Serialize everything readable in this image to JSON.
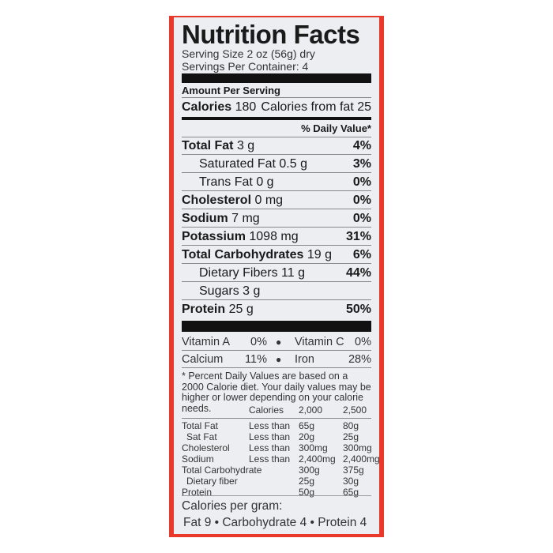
{
  "title": "Nutrition Facts",
  "serving_size": "Serving Size 2 oz (56g) dry",
  "servings_per_container": "Servings Per Container: 4",
  "amount_per_serving": "Amount Per Serving",
  "calories": {
    "label": "Calories",
    "value": "180",
    "from_fat": "Calories from fat 25"
  },
  "daily_value_header": "% Daily Value*",
  "nutrients": [
    {
      "name": "Total Fat",
      "amount": "3 g",
      "pct": "4%",
      "bold": true
    },
    {
      "name": "Saturated Fat",
      "amount": "0.5 g",
      "pct": "3%",
      "bold": false
    },
    {
      "name": "Trans Fat",
      "amount": "0 g",
      "pct": "0%",
      "bold": false
    },
    {
      "name": "Cholesterol",
      "amount": "0 mg",
      "pct": "0%",
      "bold": true
    },
    {
      "name": "Sodium",
      "amount": "7 mg",
      "pct": "0%",
      "bold": true
    },
    {
      "name": "Potassium",
      "amount": "1098 mg",
      "pct": "31%",
      "bold": true
    },
    {
      "name": "Total Carbohydrates",
      "amount": "19 g",
      "pct": "6%",
      "bold": true
    },
    {
      "name": "Dietary Fibers",
      "amount": "11 g",
      "pct": "44%",
      "bold": false
    },
    {
      "name": "Sugars",
      "amount": "3 g",
      "pct": "",
      "bold": false
    },
    {
      "name": "Protein",
      "amount": "25 g",
      "pct": "50%",
      "bold": true
    }
  ],
  "vitamins": [
    [
      {
        "name": "Vitamin A",
        "pct": "0%"
      },
      {
        "name": "Vitamin C",
        "pct": "0%"
      }
    ],
    [
      {
        "name": "Calcium",
        "pct": "11%"
      },
      {
        "name": "Iron",
        "pct": "28%"
      }
    ]
  ],
  "footnote": "* Percent Daily Values are based on a 2000 Calorie diet. Your daily values may be higher or lower depending on your calorie needs.",
  "dv_table": {
    "header": [
      "",
      "Calories",
      "2,000",
      "2,500"
    ],
    "rows": [
      [
        "Total Fat",
        "Less than",
        "65g",
        "80g"
      ],
      [
        " Sat Fat",
        "Less than",
        "20g",
        "25g"
      ],
      [
        "Cholesterol",
        "Less than",
        "300mg",
        "300mg"
      ],
      [
        "Sodium",
        "Less than",
        "2,400mg",
        "2,400mg"
      ],
      [
        "Total Carbohydrate",
        "",
        "300g",
        "375g"
      ],
      [
        " Dietary fiber",
        "",
        "25g",
        "30g"
      ],
      [
        "Protein",
        "",
        "50g",
        "65g"
      ]
    ]
  },
  "calories_per_gram": {
    "label": "Calories per gram:",
    "values": "Fat 9 • Carbohydrate 4 • Protein 4"
  },
  "colors": {
    "border": "#e8392b",
    "panel": "#eceef2"
  }
}
